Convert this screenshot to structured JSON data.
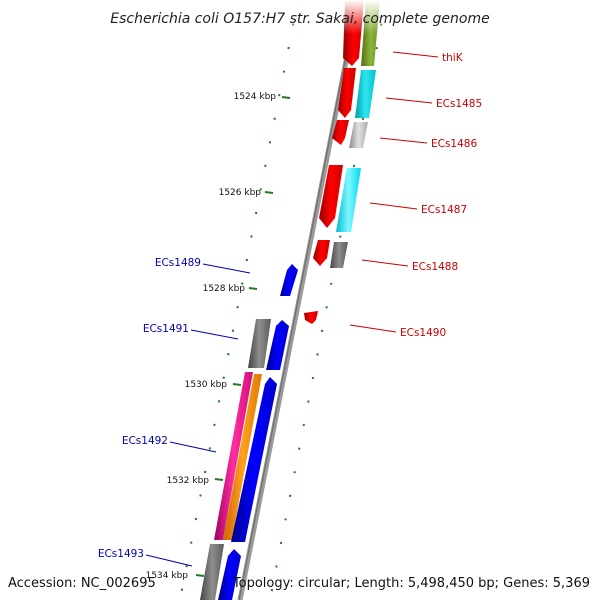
{
  "title": "Escherichia coli O157:H7 str. Sakai, complete genome",
  "footer": {
    "accession": "Accession: NC_002695",
    "summary": "Topology: circular; Length: 5,498,450 bp; Genes: 5,369"
  },
  "colors": {
    "backbone": "#8a8a8a",
    "tick": "#1e7a1e",
    "forward_label": "#cc0000",
    "reverse_label": "#0000bb"
  },
  "kbp_ticks": [
    {
      "label": "1524 kbp",
      "pos": 1524
    },
    {
      "label": "1526 kbp",
      "pos": 1526
    },
    {
      "label": "1528 kbp",
      "pos": 1528
    },
    {
      "label": "1530 kbp",
      "pos": 1530
    },
    {
      "label": "1532 kbp",
      "pos": 1532
    },
    {
      "label": "1534 kbp",
      "pos": 1534
    }
  ],
  "gene_labels": [
    {
      "text": "thiK",
      "strand": "forward"
    },
    {
      "text": "ECs1485",
      "strand": "forward"
    },
    {
      "text": "ECs1486",
      "strand": "forward"
    },
    {
      "text": "ECs1487",
      "strand": "forward"
    },
    {
      "text": "ECs1488",
      "strand": "forward"
    },
    {
      "text": "ECs1490",
      "strand": "forward"
    },
    {
      "text": "ECs1489",
      "strand": "reverse"
    },
    {
      "text": "ECs1491",
      "strand": "reverse"
    },
    {
      "text": "ECs1492",
      "strand": "reverse"
    },
    {
      "text": "ECs1493",
      "strand": "reverse"
    }
  ]
}
